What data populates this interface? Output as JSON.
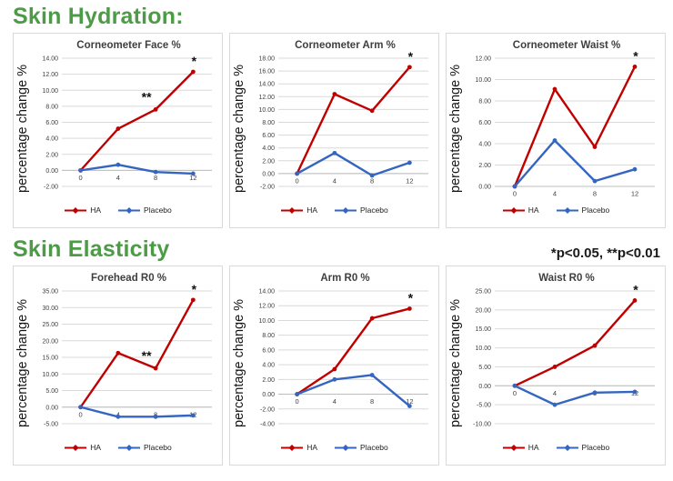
{
  "headings": {
    "hydration": "Skin Hydration:",
    "elasticity": "Skin Elasticity",
    "significance_note": "*p<0.05, **p<0.01"
  },
  "colors": {
    "heading_green": "#4e9b47",
    "ha_red": "#c00000",
    "placebo_blue": "#3465c0"
  },
  "y_axis_label": "percentage change %",
  "chart_data": [
    {
      "type": "line",
      "section": "Skin Hydration",
      "title": "Corneometer Face %",
      "x": [
        0,
        4,
        8,
        12
      ],
      "ylabel": "percentage change %",
      "ylim": [
        -2,
        14
      ],
      "ystep": 2,
      "grid": true,
      "legend_position": "bottom",
      "series": [
        {
          "name": "HA",
          "color": "#c00000",
          "values": [
            0.0,
            5.2,
            7.6,
            12.3
          ]
        },
        {
          "name": "Placebo",
          "color": "#3465c0",
          "values": [
            0.0,
            0.7,
            -0.2,
            -0.4
          ]
        }
      ],
      "annotations": [
        {
          "x_index": 2,
          "series": "HA",
          "text": "**"
        },
        {
          "x_index": 3,
          "series": "HA",
          "text": "*"
        }
      ]
    },
    {
      "type": "line",
      "section": "Skin Hydration",
      "title": "Corneometer Arm %",
      "x": [
        0,
        4,
        8,
        12
      ],
      "ylabel": "percentage change %",
      "ylim": [
        -2,
        18
      ],
      "ystep": 2,
      "grid": true,
      "legend_position": "bottom",
      "series": [
        {
          "name": "HA",
          "color": "#c00000",
          "values": [
            0.0,
            12.4,
            9.8,
            16.6
          ]
        },
        {
          "name": "Placebo",
          "color": "#3465c0",
          "values": [
            0.0,
            3.2,
            -0.3,
            1.7
          ]
        }
      ],
      "annotations": [
        {
          "x_index": 3,
          "series": "HA",
          "text": "*"
        }
      ]
    },
    {
      "type": "line",
      "section": "Skin Hydration",
      "title": "Corneometer Waist %",
      "x": [
        0,
        4,
        8,
        12
      ],
      "ylabel": "percentage change %",
      "ylim": [
        0,
        12
      ],
      "ystep": 2,
      "grid": true,
      "legend_position": "bottom",
      "series": [
        {
          "name": "HA",
          "color": "#c00000",
          "values": [
            0.0,
            9.1,
            3.7,
            11.2
          ]
        },
        {
          "name": "Placebo",
          "color": "#3465c0",
          "values": [
            0.0,
            4.3,
            0.5,
            1.6
          ]
        }
      ],
      "annotations": [
        {
          "x_index": 3,
          "series": "HA",
          "text": "*"
        }
      ]
    },
    {
      "type": "line",
      "section": "Skin Elasticity",
      "title": "Forehead R0 %",
      "x": [
        0,
        4,
        8,
        12
      ],
      "ylabel": "percentage change %",
      "ylim": [
        -5,
        35
      ],
      "ystep": 5,
      "grid": true,
      "legend_position": "bottom",
      "series": [
        {
          "name": "HA",
          "color": "#c00000",
          "values": [
            0.0,
            16.3,
            11.7,
            32.3
          ]
        },
        {
          "name": "Placebo",
          "color": "#3465c0",
          "values": [
            0.0,
            -2.9,
            -2.9,
            -2.5
          ]
        }
      ],
      "annotations": [
        {
          "x_index": 2,
          "series": "HA",
          "text": "**"
        },
        {
          "x_index": 3,
          "series": "HA",
          "text": "*"
        }
      ]
    },
    {
      "type": "line",
      "section": "Skin Elasticity",
      "title": "Arm R0 %",
      "x": [
        0,
        4,
        8,
        12
      ],
      "ylabel": "percentage change %",
      "ylim": [
        -4,
        14
      ],
      "ystep": 2,
      "grid": true,
      "legend_position": "bottom",
      "series": [
        {
          "name": "HA",
          "color": "#c00000",
          "values": [
            0.0,
            3.4,
            10.3,
            11.6
          ]
        },
        {
          "name": "Placebo",
          "color": "#3465c0",
          "values": [
            0.0,
            2.0,
            2.6,
            -1.6
          ]
        }
      ],
      "annotations": [
        {
          "x_index": 3,
          "series": "HA",
          "text": "*"
        }
      ]
    },
    {
      "type": "line",
      "section": "Skin Elasticity",
      "title": "Waist R0 %",
      "x": [
        0,
        4,
        8,
        12
      ],
      "ylabel": "percentage change %",
      "ylim": [
        -10,
        25
      ],
      "ystep": 5,
      "grid": true,
      "legend_position": "bottom",
      "series": [
        {
          "name": "HA",
          "color": "#c00000",
          "values": [
            0.0,
            5.0,
            10.6,
            22.5
          ]
        },
        {
          "name": "Placebo",
          "color": "#3465c0",
          "values": [
            0.0,
            -5.0,
            -1.8,
            -1.6
          ]
        }
      ],
      "annotations": [
        {
          "x_index": 3,
          "series": "HA",
          "text": "*"
        }
      ]
    }
  ]
}
